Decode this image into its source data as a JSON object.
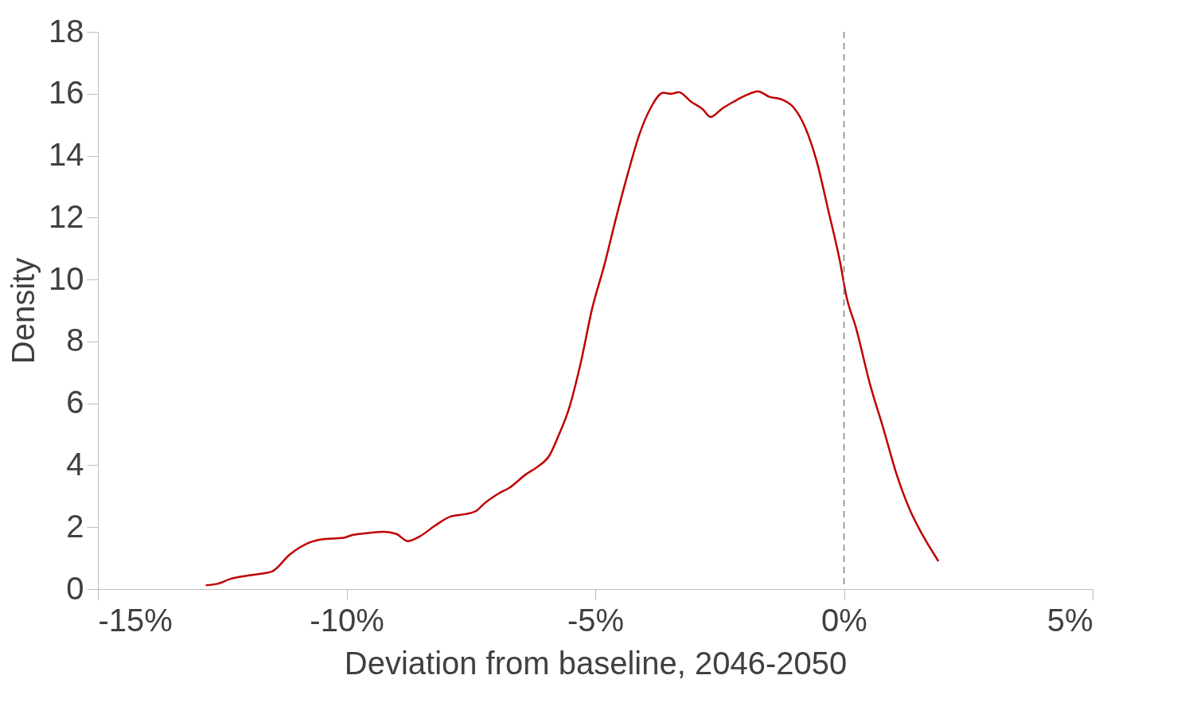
{
  "chart_data": {
    "type": "line",
    "xlabel": "Deviation from baseline, 2046-2050",
    "ylabel": "Density",
    "xlim": [
      -15,
      5
    ],
    "ylim": [
      0,
      18
    ],
    "xticks": [
      {
        "value": -15,
        "label": "-15%"
      },
      {
        "value": -10,
        "label": "-10%"
      },
      {
        "value": -5,
        "label": "-5%"
      },
      {
        "value": 0,
        "label": "0%"
      },
      {
        "value": 5,
        "label": "5%"
      }
    ],
    "yticks": [
      0,
      2,
      4,
      6,
      8,
      10,
      12,
      14,
      16,
      18
    ],
    "grid": false,
    "marker": "none",
    "line_style": "solid",
    "ref_lines": [
      {
        "axis": "x",
        "value": 0,
        "color": "#808080",
        "line_style": "dashed"
      }
    ],
    "series": [
      {
        "color": "#c00000",
        "x": [
          -12.83,
          -12.6,
          -12.33,
          -11.93,
          -11.5,
          -11.14,
          -10.75,
          -10.43,
          -10.08,
          -9.88,
          -9.64,
          -9.25,
          -9.0,
          -8.77,
          -8.53,
          -8.22,
          -7.9,
          -7.62,
          -7.4,
          -7.22,
          -6.95,
          -6.72,
          -6.4,
          -6.16,
          -5.92,
          -5.74,
          -5.53,
          -5.29,
          -5.06,
          -4.82,
          -4.58,
          -4.34,
          -4.11,
          -3.9,
          -3.63,
          -3.47,
          -3.32,
          -3.08,
          -2.84,
          -2.68,
          -2.45,
          -2.21,
          -1.97,
          -1.73,
          -1.5,
          -1.26,
          -1.02,
          -0.79,
          -0.55,
          -0.31,
          -0.08,
          0.05,
          0.24,
          0.53,
          0.79,
          1.06,
          1.32,
          1.58,
          1.9
        ],
        "values": [
          0.12,
          0.17,
          0.33,
          0.45,
          0.57,
          1.12,
          1.5,
          1.62,
          1.65,
          1.75,
          1.8,
          1.85,
          1.78,
          1.55,
          1.7,
          2.05,
          2.35,
          2.42,
          2.52,
          2.78,
          3.08,
          3.28,
          3.7,
          3.95,
          4.32,
          4.95,
          5.82,
          7.32,
          9.08,
          10.45,
          12.0,
          13.45,
          14.7,
          15.5,
          16.03,
          16.0,
          16.05,
          15.75,
          15.5,
          15.25,
          15.52,
          15.75,
          15.95,
          16.08,
          15.9,
          15.82,
          15.57,
          14.95,
          13.83,
          12.2,
          10.58,
          9.45,
          8.45,
          6.58,
          5.2,
          3.7,
          2.58,
          1.75,
          0.9
        ]
      }
    ]
  }
}
